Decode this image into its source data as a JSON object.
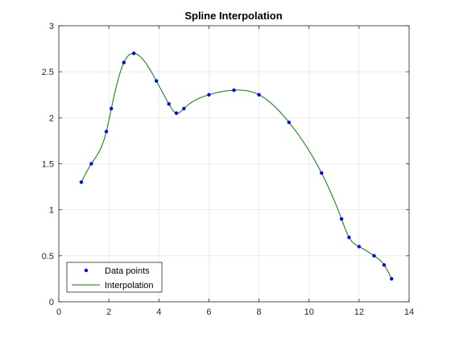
{
  "chart_data": {
    "type": "line",
    "title": "Spline Interpolation",
    "xlabel": "",
    "ylabel": "",
    "xlim": [
      0,
      14
    ],
    "ylim": [
      0,
      3
    ],
    "xticks": [
      0,
      2,
      4,
      6,
      8,
      10,
      12,
      14
    ],
    "yticks": [
      0,
      0.5,
      1,
      1.5,
      2,
      2.5,
      3
    ],
    "xtick_labels": [
      "0",
      "2",
      "4",
      "6",
      "8",
      "10",
      "12",
      "14"
    ],
    "ytick_labels": [
      "0",
      "0.5",
      "1",
      "1.5",
      "2",
      "2.5",
      "3"
    ],
    "grid": true,
    "legend_position": "bottom-left",
    "series": [
      {
        "name": "Data points",
        "kind": "markers",
        "color": "#0000ff",
        "x": [
          0.9,
          1.3,
          1.9,
          2.1,
          2.6,
          3.0,
          3.9,
          4.4,
          4.7,
          5.0,
          6.0,
          7.0,
          8.0,
          9.2,
          10.5,
          11.3,
          11.6,
          12.0,
          12.6,
          13.0,
          13.3
        ],
        "y": [
          1.3,
          1.5,
          1.85,
          2.1,
          2.6,
          2.7,
          2.4,
          2.15,
          2.05,
          2.1,
          2.25,
          2.3,
          2.25,
          1.95,
          1.4,
          0.9,
          0.7,
          0.6,
          0.5,
          0.4,
          0.25
        ]
      },
      {
        "name": "Interpolation",
        "kind": "line",
        "color": "#008000"
      }
    ]
  }
}
